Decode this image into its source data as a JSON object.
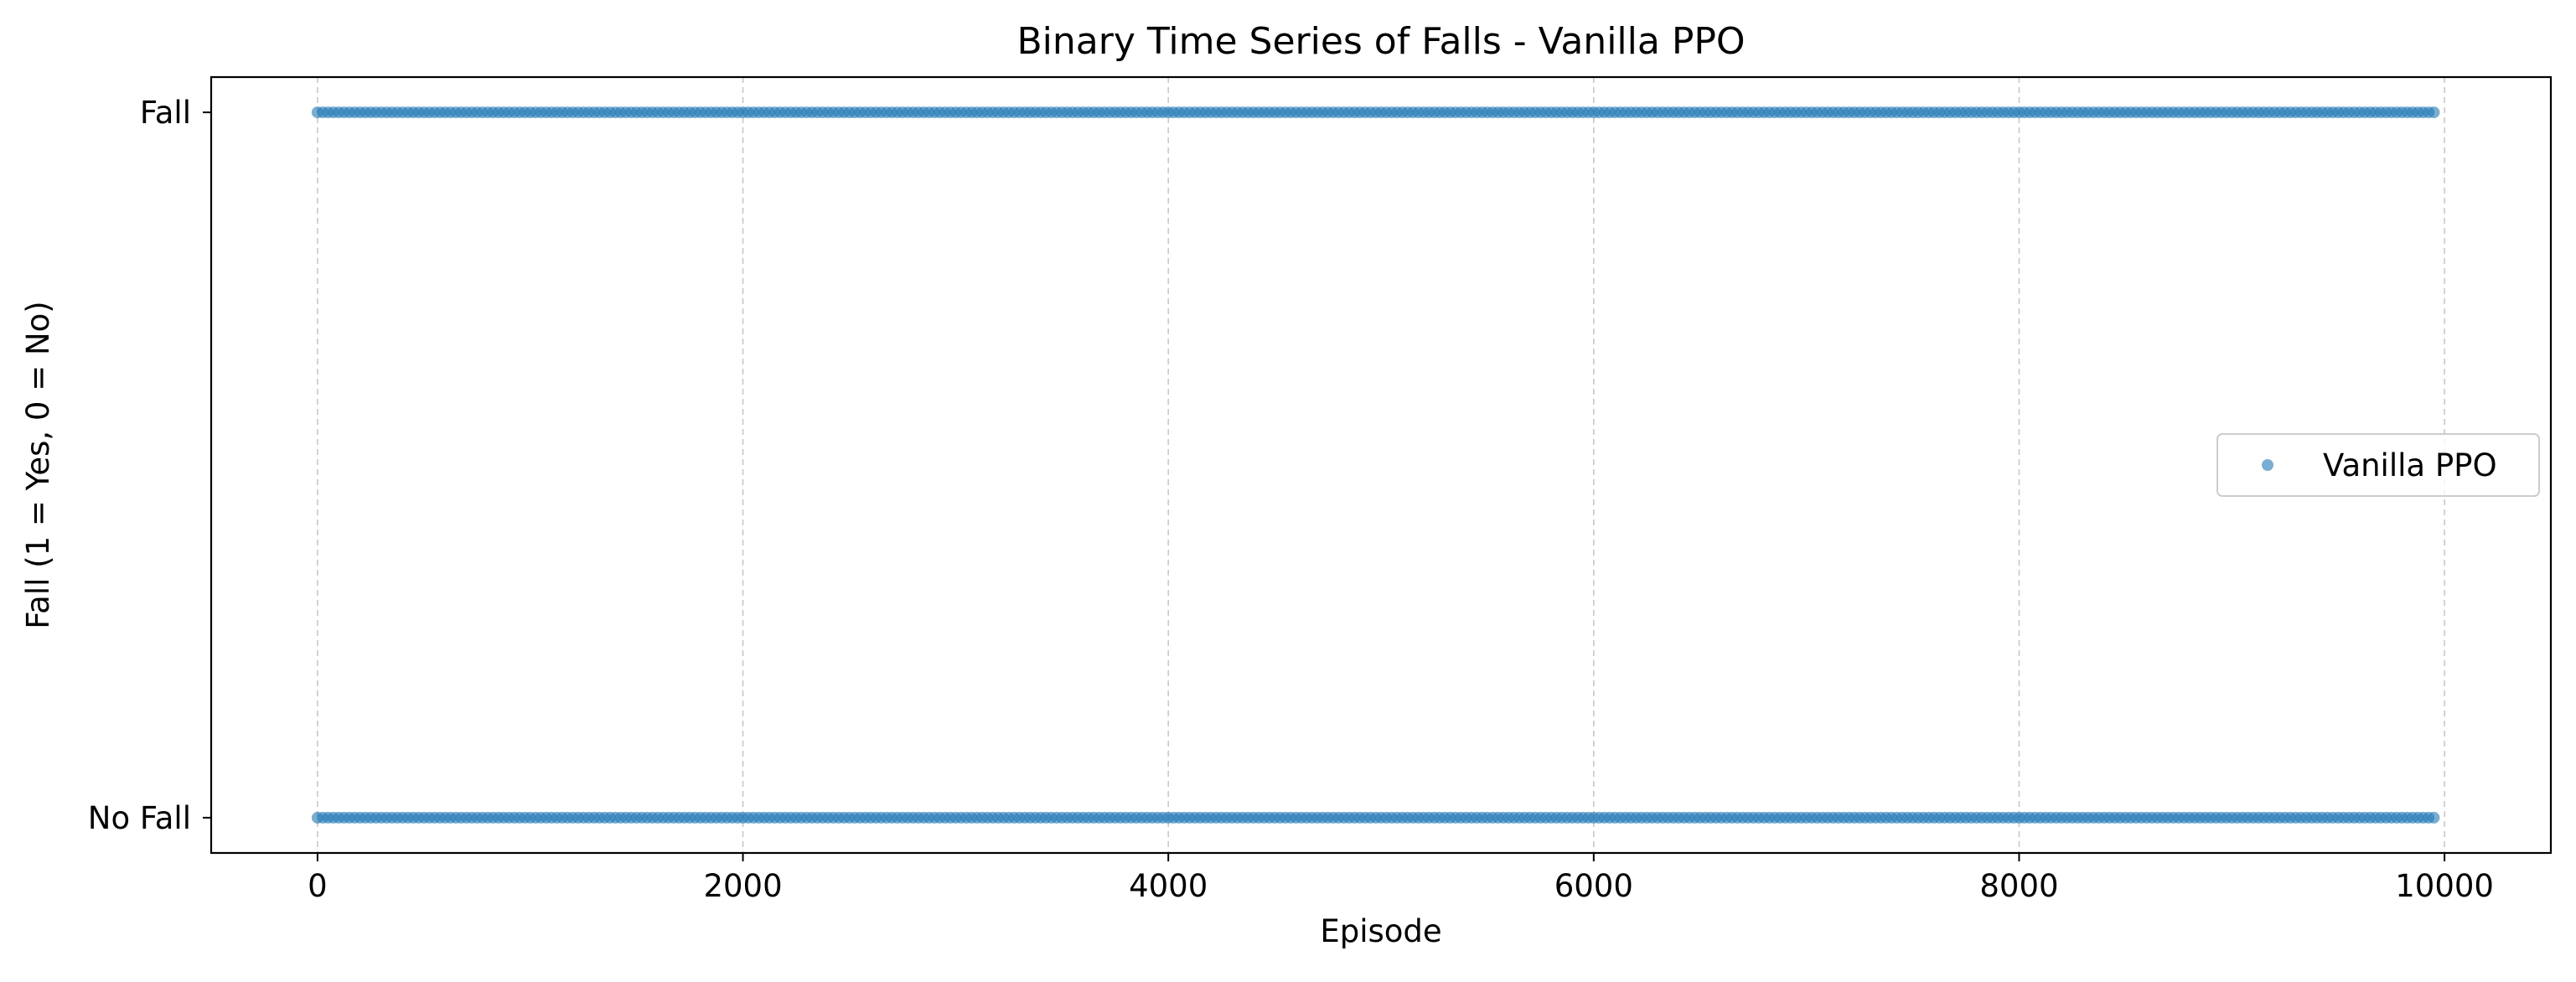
{
  "chart_data": {
    "type": "scatter",
    "title": "Binary Time Series of Falls - Vanilla PPO",
    "xlabel": "Episode",
    "ylabel": "Fall (1 = Yes, 0 = No)",
    "xlim": [
      -500,
      10500
    ],
    "ylim": [
      -0.05,
      1.05
    ],
    "x_ticks": [
      0,
      2000,
      4000,
      6000,
      8000,
      10000
    ],
    "x_tick_labels": [
      "0",
      "2000",
      "4000",
      "6000",
      "8000",
      "10000"
    ],
    "y_ticks": [
      0,
      1
    ],
    "y_tick_labels": [
      "No Fall",
      "Fall"
    ],
    "grid": "x-axis, dashed",
    "legend_position": "center-right",
    "series": [
      {
        "name": "Vanilla PPO",
        "color": "#1f77b4",
        "x_range": [
          0,
          9950
        ],
        "values": [
          0,
          1
        ],
        "description_of_marks": "dense markers at every episode, both y=0 and y=1 occur throughout"
      }
    ]
  }
}
